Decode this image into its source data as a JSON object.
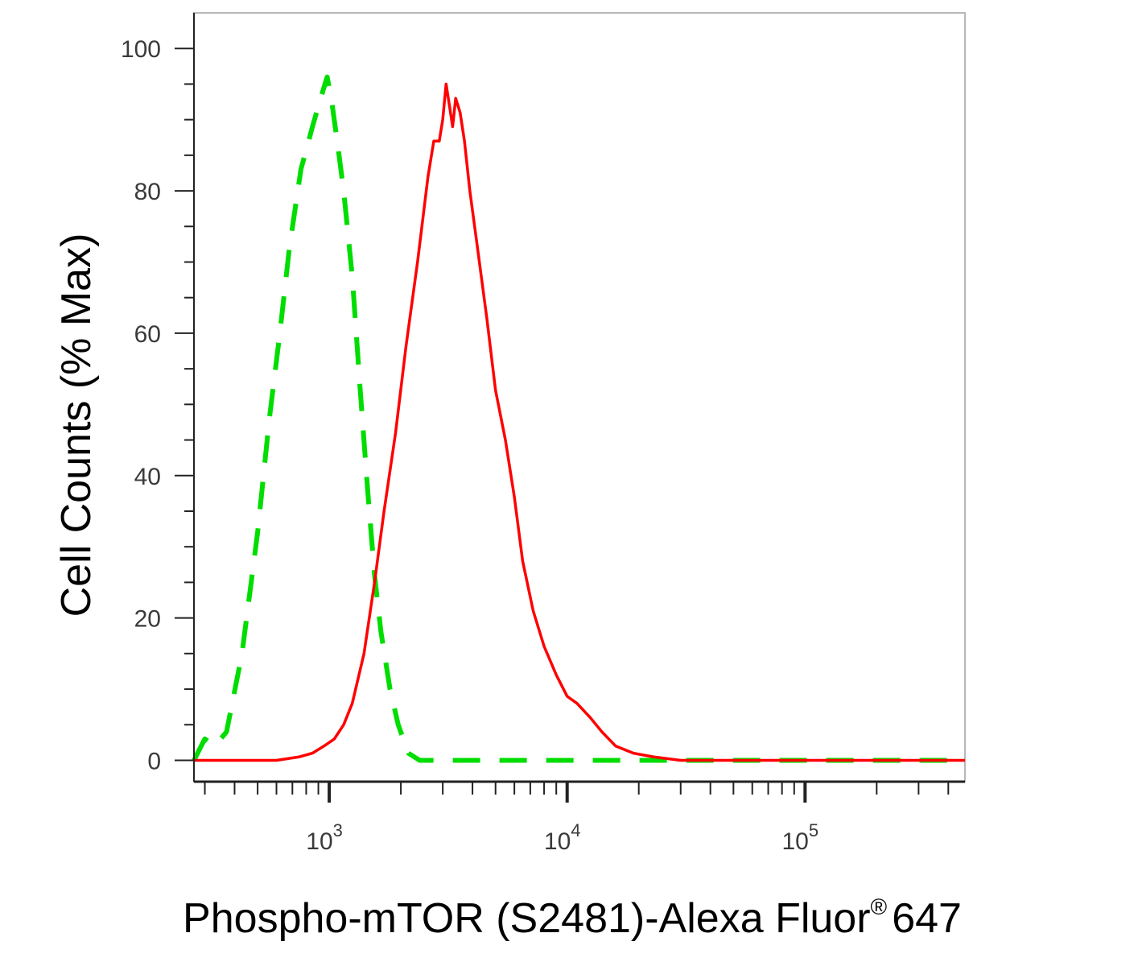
{
  "chart_data": {
    "type": "line",
    "title": "",
    "xlabel": "Phospho-mTOR (S2481)-Alexa Fluor",
    "xlabel_symbol": "®",
    "xlabel_suffix": "647",
    "ylabel": "Cell Counts (% Max)",
    "x_scale": "log",
    "xlim": [
      270,
      470000
    ],
    "ylim": [
      -3,
      105
    ],
    "grid": false,
    "legend": "none",
    "y_ticks": [
      {
        "value": 0,
        "label": "0"
      },
      {
        "value": 20,
        "label": "20"
      },
      {
        "value": 40,
        "label": "40"
      },
      {
        "value": 60,
        "label": "60"
      },
      {
        "value": 80,
        "label": "80"
      },
      {
        "value": 100,
        "label": "100"
      }
    ],
    "x_ticks": [
      {
        "value": 1000,
        "base": "10",
        "exp": "3"
      },
      {
        "value": 10000,
        "base": "10",
        "exp": "4"
      },
      {
        "value": 100000,
        "base": "10",
        "exp": "5"
      }
    ],
    "series": [
      {
        "color": "#00dd00",
        "style": "dashed",
        "x": [
          270,
          300,
          330,
          370,
          430,
          500,
          560,
          620,
          680,
          760,
          850,
          920,
          980,
          1020,
          1080,
          1150,
          1250,
          1350,
          1450,
          1550,
          1650,
          1800,
          1950,
          2150,
          2400,
          3000,
          5000,
          10000,
          30000,
          100000,
          470000
        ],
        "y": [
          0,
          3,
          2,
          4,
          15,
          32,
          48,
          60,
          72,
          83,
          89,
          93,
          96,
          93,
          87,
          80,
          68,
          52,
          38,
          26,
          18,
          10,
          5,
          1,
          0,
          0,
          0,
          0,
          0,
          0,
          0
        ]
      },
      {
        "color": "#ff0000",
        "style": "solid",
        "x": [
          270,
          300,
          350,
          450,
          600,
          750,
          850,
          950,
          1050,
          1150,
          1250,
          1400,
          1550,
          1700,
          1900,
          2100,
          2350,
          2600,
          2750,
          2900,
          3000,
          3100,
          3200,
          3300,
          3400,
          3550,
          3700,
          3900,
          4200,
          4600,
          5000,
          5500,
          6000,
          6500,
          7200,
          8000,
          9000,
          10000,
          11000,
          12500,
          14000,
          16000,
          19000,
          23000,
          30000,
          50000,
          100000,
          470000
        ],
        "y": [
          0,
          0,
          0,
          0,
          0,
          0.5,
          1,
          2,
          3,
          5,
          8,
          15,
          25,
          35,
          46,
          58,
          70,
          82,
          87,
          87,
          90,
          95,
          92,
          89,
          93,
          91,
          87,
          80,
          72,
          62,
          52,
          45,
          37,
          28,
          21,
          16,
          12,
          9,
          8,
          6,
          4,
          2,
          1,
          0.5,
          0,
          0,
          0,
          0
        ]
      }
    ]
  }
}
